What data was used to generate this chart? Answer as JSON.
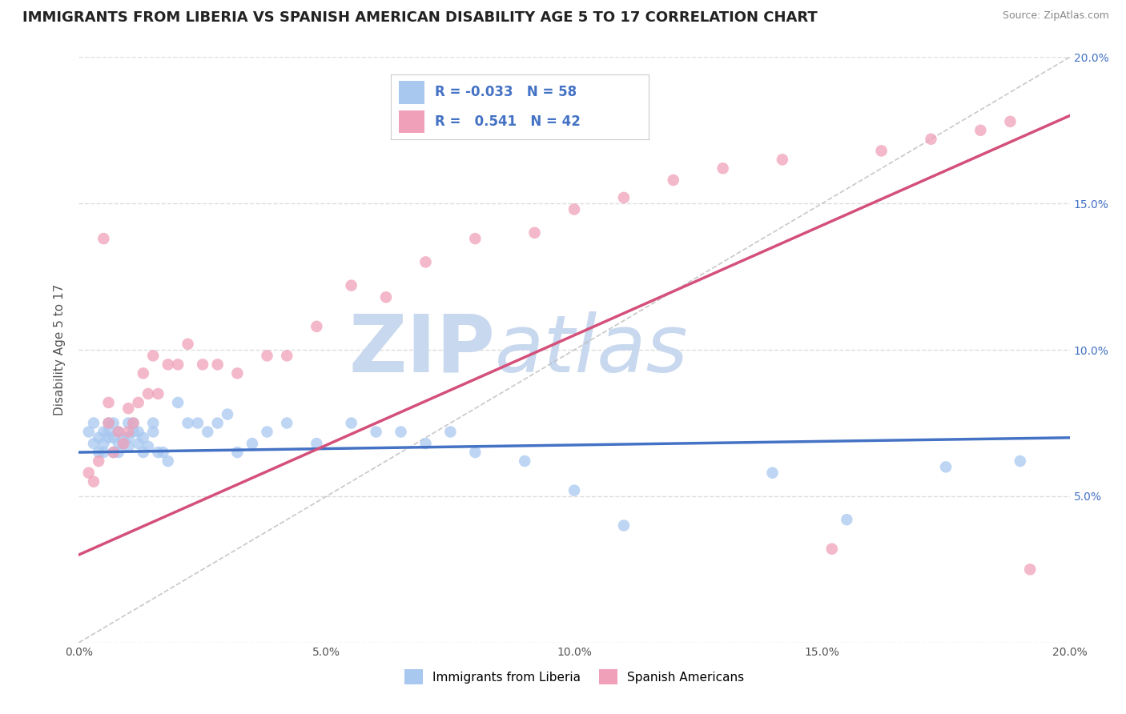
{
  "title": "IMMIGRANTS FROM LIBERIA VS SPANISH AMERICAN DISABILITY AGE 5 TO 17 CORRELATION CHART",
  "source": "Source: ZipAtlas.com",
  "ylabel": "Disability Age 5 to 17",
  "legend_label1": "Immigrants from Liberia",
  "legend_label2": "Spanish Americans",
  "r1": -0.033,
  "n1": 58,
  "r2": 0.541,
  "n2": 42,
  "color1": "#A8C8F0",
  "color2": "#F0A0B8",
  "trendline1_color": "#4472C4",
  "trendline2_color": "#D4507A",
  "watermark_zip": "ZIP",
  "watermark_atlas": "atlas",
  "watermark_color": "#C8D8EE",
  "xlim": [
    0.0,
    0.2
  ],
  "ylim": [
    0.0,
    0.2
  ],
  "tick_vals": [
    0.0,
    0.05,
    0.1,
    0.15,
    0.2
  ],
  "background_color": "#FFFFFF",
  "grid_color": "#DDDDDD",
  "title_color": "#222222",
  "axis_label_color": "#555555",
  "right_axis_color": "#4472C4",
  "title_fontsize": 13,
  "axis_fontsize": 11,
  "tick_fontsize": 10,
  "scatter1_x": [
    0.002,
    0.003,
    0.003,
    0.004,
    0.004,
    0.005,
    0.005,
    0.005,
    0.006,
    0.006,
    0.006,
    0.007,
    0.007,
    0.007,
    0.008,
    0.008,
    0.008,
    0.009,
    0.009,
    0.01,
    0.01,
    0.01,
    0.011,
    0.011,
    0.012,
    0.012,
    0.013,
    0.013,
    0.014,
    0.015,
    0.015,
    0.016,
    0.017,
    0.018,
    0.02,
    0.022,
    0.024,
    0.026,
    0.028,
    0.03,
    0.032,
    0.035,
    0.038,
    0.042,
    0.048,
    0.055,
    0.06,
    0.065,
    0.07,
    0.075,
    0.08,
    0.09,
    0.1,
    0.11,
    0.14,
    0.155,
    0.175,
    0.19
  ],
  "scatter1_y": [
    0.072,
    0.068,
    0.075,
    0.065,
    0.07,
    0.065,
    0.068,
    0.072,
    0.07,
    0.072,
    0.075,
    0.065,
    0.07,
    0.075,
    0.065,
    0.068,
    0.072,
    0.068,
    0.07,
    0.067,
    0.07,
    0.075,
    0.072,
    0.075,
    0.068,
    0.072,
    0.065,
    0.07,
    0.067,
    0.072,
    0.075,
    0.065,
    0.065,
    0.062,
    0.082,
    0.075,
    0.075,
    0.072,
    0.075,
    0.078,
    0.065,
    0.068,
    0.072,
    0.075,
    0.068,
    0.075,
    0.072,
    0.072,
    0.068,
    0.072,
    0.065,
    0.062,
    0.052,
    0.04,
    0.058,
    0.042,
    0.06,
    0.062
  ],
  "scatter2_x": [
    0.002,
    0.003,
    0.004,
    0.005,
    0.006,
    0.006,
    0.007,
    0.008,
    0.009,
    0.01,
    0.01,
    0.011,
    0.012,
    0.013,
    0.014,
    0.015,
    0.016,
    0.018,
    0.02,
    0.022,
    0.025,
    0.028,
    0.032,
    0.038,
    0.042,
    0.048,
    0.055,
    0.062,
    0.07,
    0.08,
    0.092,
    0.1,
    0.11,
    0.12,
    0.13,
    0.142,
    0.152,
    0.162,
    0.172,
    0.182,
    0.188,
    0.192
  ],
  "scatter2_y": [
    0.058,
    0.055,
    0.062,
    0.138,
    0.075,
    0.082,
    0.065,
    0.072,
    0.068,
    0.072,
    0.08,
    0.075,
    0.082,
    0.092,
    0.085,
    0.098,
    0.085,
    0.095,
    0.095,
    0.102,
    0.095,
    0.095,
    0.092,
    0.098,
    0.098,
    0.108,
    0.122,
    0.118,
    0.13,
    0.138,
    0.14,
    0.148,
    0.152,
    0.158,
    0.162,
    0.165,
    0.032,
    0.168,
    0.172,
    0.175,
    0.178,
    0.025
  ]
}
